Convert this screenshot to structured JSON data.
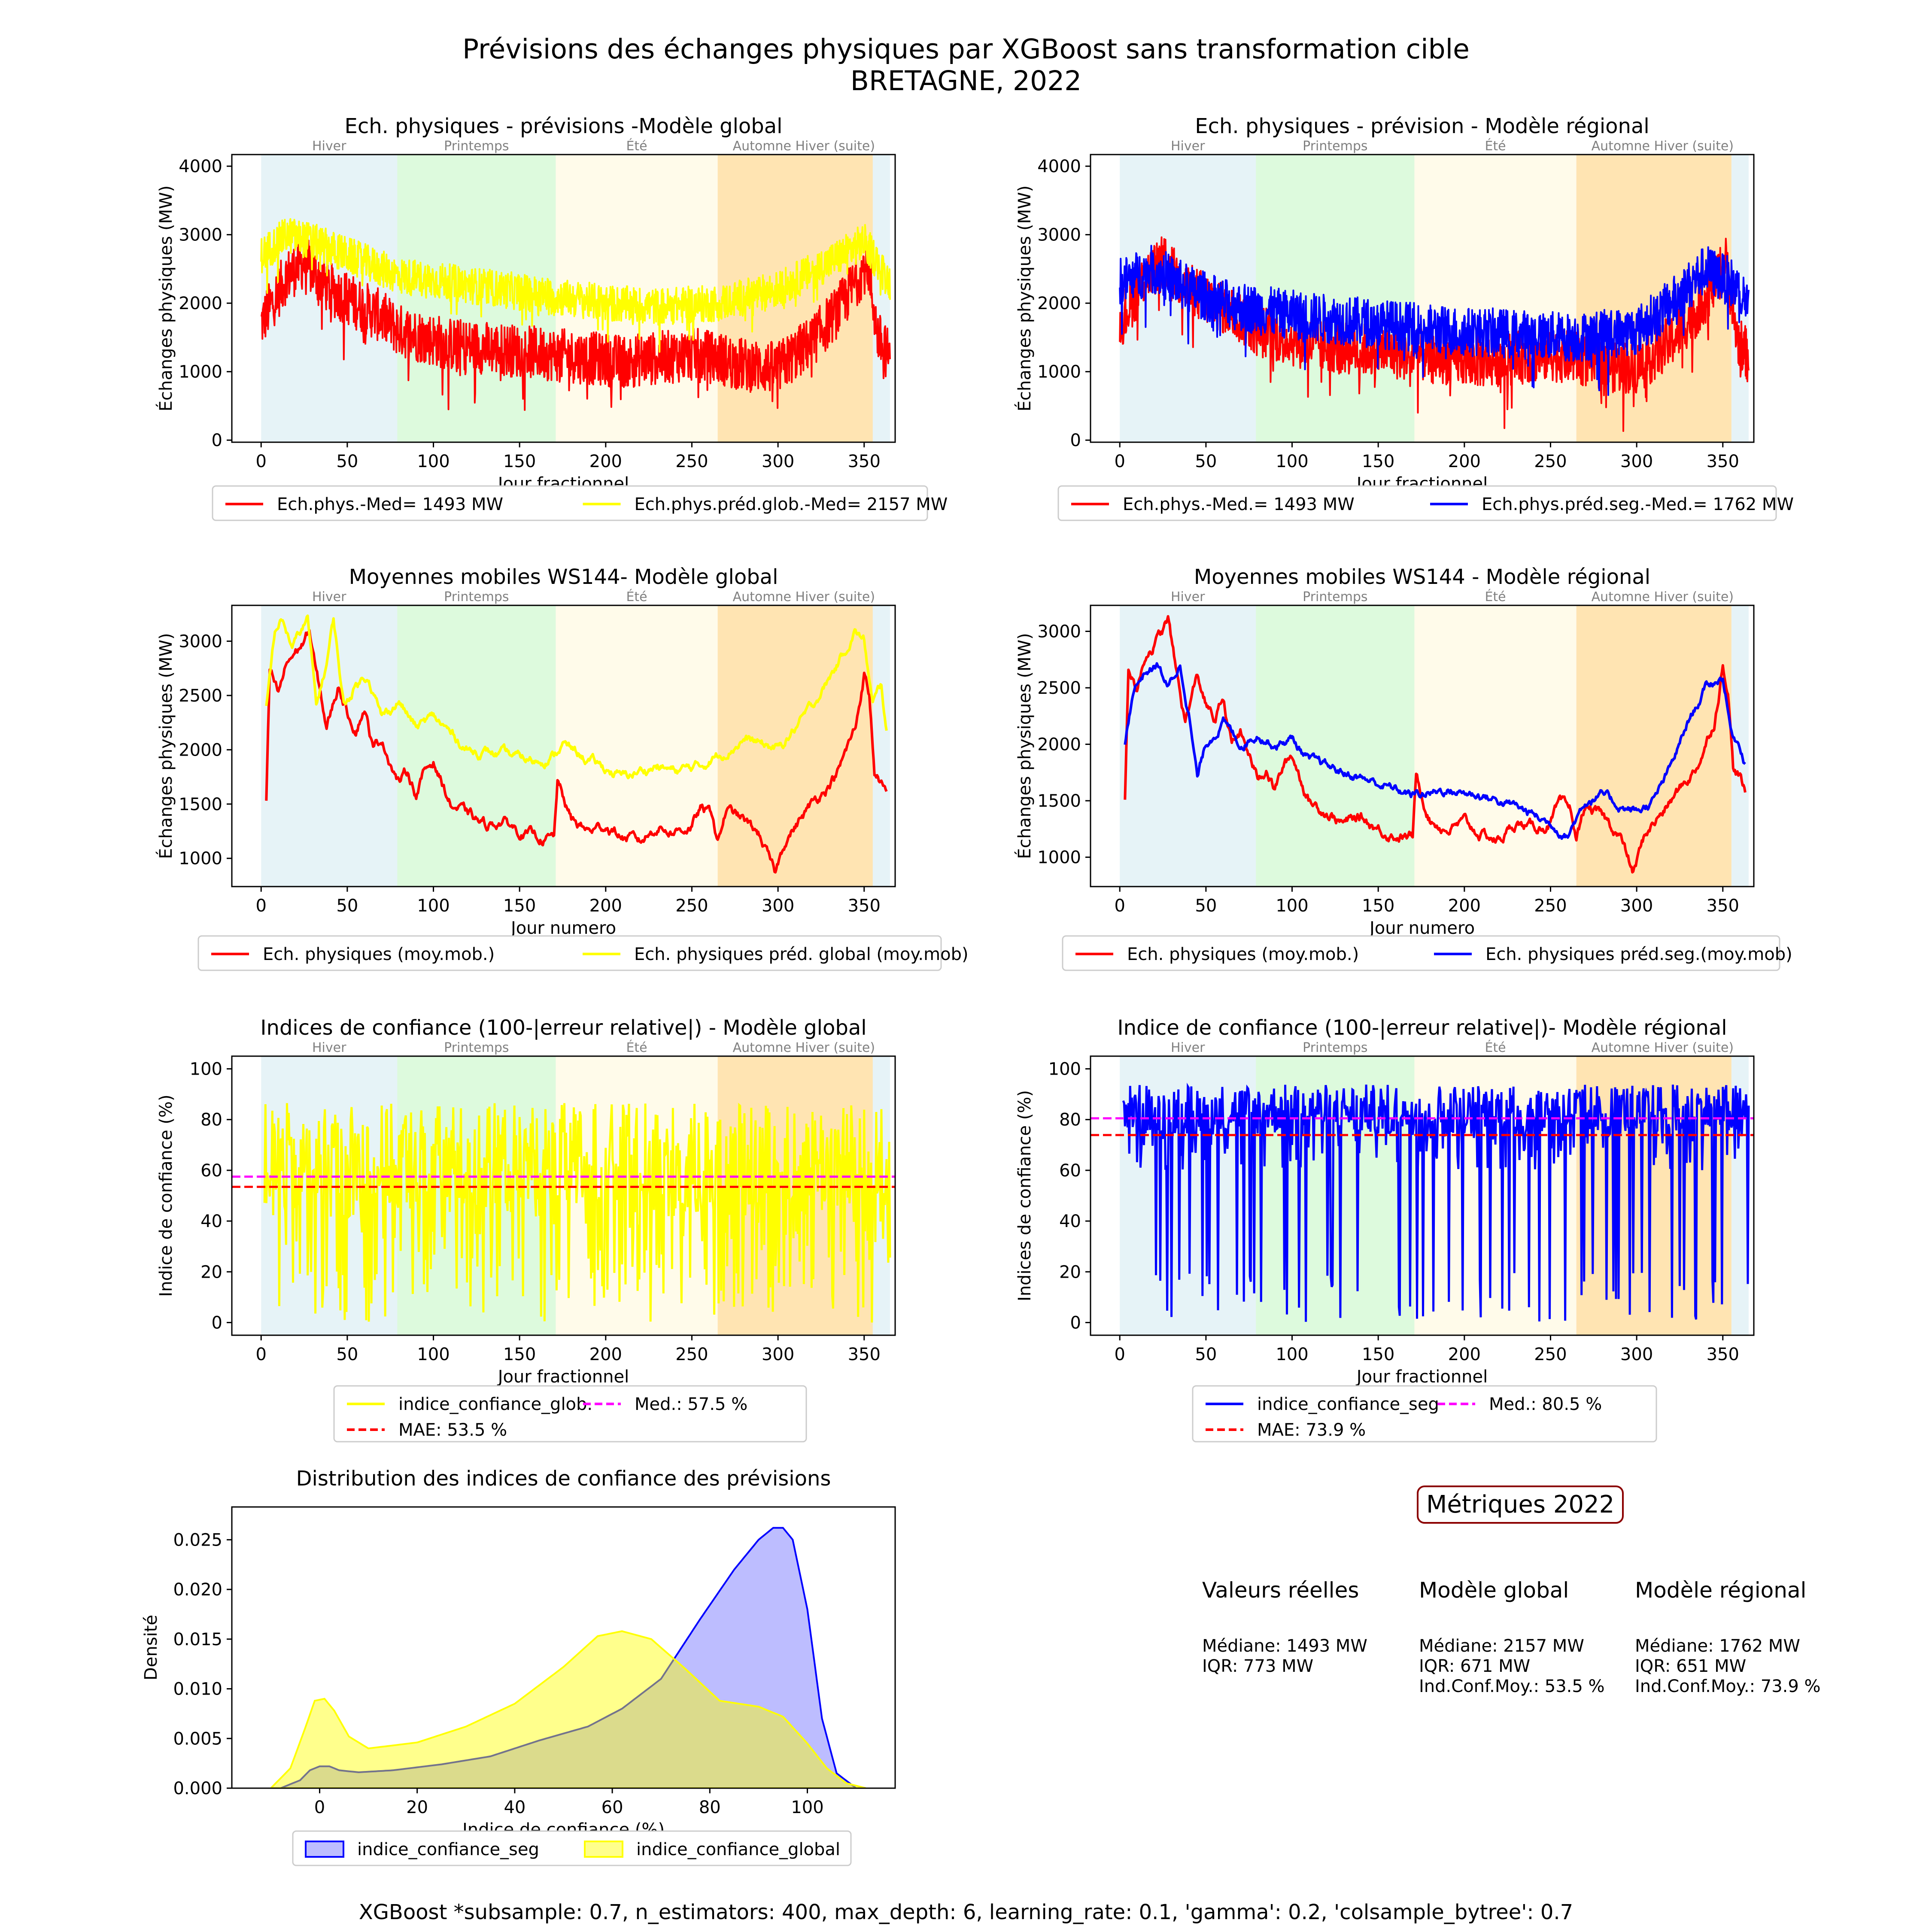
{
  "figure": {
    "title_line1": "Prévisions des échanges physiques par XGBoost sans transformation cible",
    "title_line2": "BRETAGNE, 2022",
    "footer": "XGBoost *subsample: 0.7, n_estimators: 400, max_depth: 6, learning_rate: 0.1, 'gamma': 0.2, 'colsample_bytree': 0.7"
  },
  "colors": {
    "actual": "#ff0000",
    "global": "#ffff00",
    "regional": "#0000ff",
    "median_line": "#ff00ff",
    "mae_line": "#ff0000",
    "season_hiver": "#add8e6",
    "season_printemps": "#90ee90",
    "season_ete": "#fff8dc",
    "season_automne": "#ffa500",
    "metrics_border": "#8b0000"
  },
  "seasons": [
    {
      "name": "Hiver",
      "start": 0,
      "end": 79,
      "color": "#add8e6"
    },
    {
      "name": "Printemps",
      "start": 79,
      "end": 171,
      "color": "#90ee90"
    },
    {
      "name": "Été",
      "start": 171,
      "end": 265,
      "color": "#fff8dc"
    },
    {
      "name": "Automne",
      "start": 265,
      "end": 355,
      "color": "#ffa500"
    },
    {
      "name": "Hiver (suite)",
      "start": 355,
      "end": 365,
      "color": "#add8e6"
    }
  ],
  "season_label_automne_hiver": "Automne Hiver (suite)",
  "chart_data": [
    {
      "id": "p1",
      "type": "line",
      "title": "Ech. physiques - prévisions -Modèle global",
      "xlabel": "Jour fractionnel",
      "ylabel": "Échanges physiques (MW)",
      "xlim": [
        -17,
        368
      ],
      "ylim": [
        -30,
        4170
      ],
      "xticks": [
        0,
        50,
        100,
        150,
        200,
        250,
        300,
        350
      ],
      "yticks": [
        0,
        1000,
        2000,
        3000,
        4000
      ],
      "series": [
        {
          "name": "Ech.phys.-Med= 1493 MW",
          "color": "#ff0000",
          "kind": "noisy",
          "x": [
            0,
            15,
            25,
            40,
            55,
            70,
            80,
            95,
            110,
            130,
            150,
            170,
            190,
            210,
            230,
            250,
            265,
            280,
            300,
            320,
            335,
            345,
            352,
            358,
            365
          ],
          "values": [
            1700,
            2400,
            2600,
            2200,
            2000,
            1800,
            1600,
            1500,
            1400,
            1350,
            1300,
            1250,
            1200,
            1150,
            1200,
            1250,
            1200,
            1100,
            1050,
            1450,
            1900,
            2300,
            2600,
            1500,
            1200
          ],
          "amp": 650
        },
        {
          "name": "Ech.phys.préd.glob.-Med= 2157 MW",
          "color": "#ffff00",
          "kind": "noisy",
          "x": [
            0,
            15,
            30,
            50,
            80,
            110,
            140,
            170,
            200,
            230,
            265,
            300,
            330,
            350,
            365
          ],
          "values": [
            2700,
            3000,
            2900,
            2700,
            2400,
            2300,
            2200,
            2100,
            2000,
            1950,
            2000,
            2200,
            2600,
            2900,
            2300
          ],
          "amp": 450
        }
      ]
    },
    {
      "id": "p2",
      "type": "line",
      "title": "Ech. physiques - prévision - Modèle régional",
      "xlabel": "Jour fractionnel",
      "ylabel": "Échanges physiques (MW)",
      "xlim": [
        -17,
        368
      ],
      "ylim": [
        -30,
        4170
      ],
      "xticks": [
        0,
        50,
        100,
        150,
        200,
        250,
        300,
        350
      ],
      "yticks": [
        0,
        1000,
        2000,
        3000,
        4000
      ],
      "series": [
        {
          "name": "Ech.phys.-Med.= 1493 MW",
          "color": "#ff0000",
          "kind": "noisy",
          "x": [
            0,
            15,
            25,
            40,
            55,
            70,
            80,
            95,
            110,
            130,
            150,
            170,
            190,
            210,
            230,
            250,
            265,
            280,
            300,
            320,
            335,
            345,
            352,
            358,
            365
          ],
          "values": [
            1700,
            2400,
            2600,
            2200,
            2000,
            1800,
            1600,
            1500,
            1400,
            1350,
            1300,
            1250,
            1200,
            1150,
            1200,
            1250,
            1200,
            1100,
            1050,
            1450,
            1900,
            2300,
            2600,
            1500,
            1200
          ],
          "amp": 650
        },
        {
          "name": "Ech.phys.préd.seg.-Med.= 1762 MW",
          "color": "#0000ff",
          "kind": "noisy",
          "x": [
            0,
            20,
            40,
            60,
            80,
            110,
            150,
            190,
            230,
            265,
            300,
            320,
            340,
            355,
            365
          ],
          "values": [
            2300,
            2500,
            2200,
            2000,
            1900,
            1800,
            1700,
            1600,
            1550,
            1500,
            1600,
            2000,
            2500,
            2300,
            2000
          ],
          "amp": 600
        }
      ]
    },
    {
      "id": "p3",
      "type": "line",
      "title": "Moyennes mobiles WS144- Modèle global",
      "xlabel": "Jour numero",
      "ylabel": "Échanges physiques (MW)",
      "xlim": [
        -17,
        368
      ],
      "ylim": [
        740,
        3330
      ],
      "xticks": [
        0,
        50,
        100,
        150,
        200,
        250,
        300,
        350
      ],
      "yticks": [
        1000,
        1500,
        2000,
        2500,
        3000
      ],
      "series": [
        {
          "name": "Ech. physiques (moy.mob.)",
          "color": "#ff0000",
          "kind": "smooth",
          "x": [
            3,
            5,
            10,
            15,
            20,
            25,
            28,
            32,
            38,
            45,
            50,
            55,
            60,
            65,
            70,
            75,
            80,
            85,
            90,
            95,
            100,
            105,
            110,
            120,
            130,
            140,
            150,
            160,
            170,
            172,
            180,
            190,
            200,
            210,
            220,
            230,
            240,
            250,
            255,
            262,
            265,
            270,
            280,
            290,
            298,
            305,
            315,
            325,
            335,
            345,
            350,
            353,
            356,
            360,
            363
          ],
          "values": [
            1520,
            2700,
            2500,
            2800,
            2900,
            3000,
            3100,
            2700,
            2200,
            2600,
            2350,
            2200,
            2400,
            2000,
            2100,
            1900,
            1700,
            1800,
            1600,
            1800,
            1900,
            1700,
            1500,
            1400,
            1300,
            1350,
            1250,
            1200,
            1180,
            1700,
            1350,
            1250,
            1300,
            1200,
            1150,
            1300,
            1250,
            1300,
            1450,
            1400,
            1150,
            1450,
            1350,
            1200,
            850,
            1200,
            1400,
            1600,
            1800,
            2200,
            2700,
            2500,
            1800,
            1700,
            1550
          ],
          "amp": 120
        },
        {
          "name": "Ech. physiques préd. global (moy.mob)",
          "color": "#ffff00",
          "kind": "smooth",
          "x": [
            3,
            8,
            12,
            18,
            22,
            27,
            32,
            38,
            42,
            48,
            55,
            62,
            70,
            80,
            90,
            100,
            120,
            140,
            160,
            170,
            175,
            190,
            210,
            220,
            230,
            240,
            255,
            265,
            280,
            300,
            320,
            335,
            345,
            350,
            355,
            360,
            363
          ],
          "values": [
            2400,
            3100,
            3200,
            2950,
            3050,
            3200,
            2400,
            2800,
            3200,
            2400,
            2600,
            2700,
            2300,
            2450,
            2200,
            2300,
            2000,
            1950,
            1900,
            1950,
            2050,
            1900,
            1750,
            1800,
            1850,
            1800,
            1850,
            1950,
            2100,
            2000,
            2400,
            2800,
            3100,
            3000,
            2400,
            2600,
            2150
          ],
          "amp": 110
        }
      ]
    },
    {
      "id": "p4",
      "type": "line",
      "title": "Moyennes mobiles WS144 - Modèle régional",
      "xlabel": "Jour numero",
      "ylabel": "Échanges physiques (MW)",
      "xlim": [
        -17,
        368
      ],
      "ylim": [
        740,
        3230
      ],
      "xticks": [
        0,
        50,
        100,
        150,
        200,
        250,
        300,
        350
      ],
      "yticks": [
        1000,
        1500,
        2000,
        2500,
        3000
      ],
      "series": [
        {
          "name": "Ech. physiques (moy.mob.)",
          "color": "#ff0000",
          "kind": "smooth",
          "x": [
            3,
            5,
            10,
            15,
            20,
            25,
            28,
            32,
            38,
            45,
            50,
            55,
            60,
            65,
            70,
            75,
            80,
            85,
            90,
            95,
            100,
            105,
            110,
            120,
            130,
            140,
            150,
            160,
            170,
            172,
            180,
            190,
            200,
            210,
            220,
            230,
            240,
            250,
            255,
            262,
            265,
            270,
            280,
            290,
            298,
            305,
            315,
            325,
            335,
            345,
            350,
            353,
            356,
            360,
            363
          ],
          "values": [
            1520,
            2700,
            2500,
            2800,
            2900,
            3000,
            3100,
            2700,
            2200,
            2600,
            2350,
            2200,
            2400,
            2000,
            2100,
            1900,
            1700,
            1800,
            1600,
            1800,
            1900,
            1700,
            1500,
            1400,
            1300,
            1350,
            1250,
            1200,
            1180,
            1700,
            1350,
            1250,
            1300,
            1200,
            1150,
            1300,
            1250,
            1300,
            1450,
            1400,
            1150,
            1450,
            1350,
            1200,
            850,
            1200,
            1400,
            1600,
            1800,
            2200,
            2700,
            2500,
            1800,
            1700,
            1550
          ],
          "amp": 120
        },
        {
          "name": "Ech. physiques préd.seg.(moy.mob)",
          "color": "#0000ff",
          "kind": "smooth",
          "x": [
            3,
            8,
            15,
            22,
            28,
            35,
            40,
            45,
            50,
            60,
            70,
            80,
            90,
            100,
            110,
            120,
            130,
            140,
            150,
            170,
            190,
            210,
            230,
            250,
            260,
            270,
            280,
            290,
            300,
            310,
            320,
            330,
            340,
            350,
            355,
            360,
            363
          ],
          "values": [
            2000,
            2500,
            2650,
            2700,
            2500,
            2700,
            2300,
            1700,
            2000,
            2200,
            2000,
            2100,
            2000,
            2050,
            1850,
            1800,
            1750,
            1700,
            1650,
            1550,
            1600,
            1550,
            1450,
            1300,
            1200,
            1500,
            1550,
            1450,
            1400,
            1500,
            1800,
            2200,
            2500,
            2600,
            2100,
            2000,
            1850
          ],
          "amp": 100
        }
      ]
    },
    {
      "id": "p5",
      "type": "line",
      "title": "Indices de confiance (100-|erreur relative|) - Modèle global",
      "xlabel": "Jour fractionnel",
      "ylabel": "Indice de confiance (%)",
      "xlim": [
        -17,
        368
      ],
      "ylim": [
        -5,
        105
      ],
      "xticks": [
        0,
        50,
        100,
        150,
        200,
        250,
        300,
        350
      ],
      "yticks": [
        0,
        20,
        40,
        60,
        80,
        100
      ],
      "series": [
        {
          "name": "indice_confiance_glob.",
          "color": "#ffff00",
          "kind": "conf",
          "base": 55,
          "spread": 45
        }
      ],
      "hlines": [
        {
          "name": "Med.: 57.5 %",
          "value": 57.5,
          "color": "#ff00ff"
        },
        {
          "name": "MAE: 53.5 %",
          "value": 53.5,
          "color": "#ff0000"
        }
      ]
    },
    {
      "id": "p6",
      "type": "line",
      "title": "Indice de confiance (100-|erreur relative|)- Modèle régional",
      "xlabel": "Jour fractionnel",
      "ylabel": "Indices de confiance (%)",
      "xlim": [
        -17,
        368
      ],
      "ylim": [
        -5,
        105
      ],
      "xticks": [
        0,
        50,
        100,
        150,
        200,
        250,
        300,
        350
      ],
      "yticks": [
        0,
        20,
        40,
        60,
        80,
        100
      ],
      "series": [
        {
          "name": "indice_confiance_seg",
          "color": "#0000ff",
          "kind": "conf",
          "base": 80,
          "spread": 20
        }
      ],
      "hlines": [
        {
          "name": "Med.: 80.5 %",
          "value": 80.5,
          "color": "#ff00ff"
        },
        {
          "name": "MAE: 73.9 %",
          "value": 73.9,
          "color": "#ff0000"
        }
      ]
    },
    {
      "id": "p7",
      "type": "area",
      "title": "Distribution des indices de confiance des prévisions",
      "xlabel": "Indice de confiance (%)",
      "ylabel": "Densité",
      "xlim": [
        -18,
        118
      ],
      "ylim": [
        0,
        0.0283
      ],
      "xticks": [
        0,
        20,
        40,
        60,
        80,
        100
      ],
      "yticks": [
        0.0,
        0.005,
        0.01,
        0.015,
        0.02,
        0.025
      ],
      "ytick_labels": [
        "0.000",
        "0.005",
        "0.010",
        "0.015",
        "0.020",
        "0.025"
      ],
      "series": [
        {
          "name": "indice_confiance_seg",
          "color": "#0000ff",
          "fill": "rgba(0,0,255,0.26)",
          "x": [
            -8,
            -4,
            -2,
            0,
            2,
            4,
            8,
            15,
            25,
            35,
            45,
            55,
            62,
            70,
            78,
            85,
            90,
            93,
            95,
            97,
            100,
            103,
            106,
            110
          ],
          "values": [
            0,
            0.0008,
            0.0018,
            0.0022,
            0.0022,
            0.0018,
            0.0016,
            0.0018,
            0.0024,
            0.0032,
            0.0048,
            0.0062,
            0.008,
            0.011,
            0.017,
            0.022,
            0.025,
            0.0262,
            0.0262,
            0.025,
            0.018,
            0.007,
            0.0015,
            0
          ]
        },
        {
          "name": "indice_confiance_global",
          "color": "#ffff00",
          "fill": "rgba(255,255,0,0.45)",
          "x": [
            -10,
            -6,
            -3,
            -1,
            1,
            3,
            6,
            10,
            20,
            30,
            40,
            50,
            57,
            62,
            68,
            75,
            82,
            90,
            95,
            100,
            104,
            108,
            112
          ],
          "values": [
            0,
            0.002,
            0.006,
            0.0088,
            0.009,
            0.0078,
            0.0052,
            0.004,
            0.0046,
            0.0062,
            0.0085,
            0.0122,
            0.0153,
            0.0158,
            0.015,
            0.012,
            0.0088,
            0.0082,
            0.0072,
            0.0045,
            0.002,
            0.0005,
            0
          ]
        }
      ]
    }
  ],
  "metrics": {
    "title": "Métriques 2022",
    "columns": [
      {
        "header": "Valeurs réelles",
        "lines": [
          "Médiane: 1493 MW",
          "IQR: 773 MW"
        ]
      },
      {
        "header": "Modèle global",
        "lines": [
          "Médiane: 2157 MW",
          "IQR: 671 MW",
          "Ind.Conf.Moy.: 53.5 %"
        ]
      },
      {
        "header": "Modèle régional",
        "lines": [
          "Médiane: 1762 MW",
          "IQR: 651 MW",
          "Ind.Conf.Moy.: 73.9 %"
        ]
      }
    ]
  }
}
